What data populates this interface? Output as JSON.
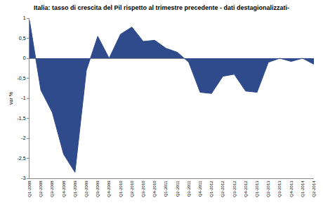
{
  "chart_data": {
    "type": "area",
    "title": "Italia: tasso di crescita del Pil rispetto al trimestre precedente - dati destagionalizzati-",
    "y_label": "var %",
    "categories": [
      "Q1-2008",
      "Q2-2008",
      "Q3-2008",
      "Q4-2008",
      "Q1-2009",
      "Q2-2009",
      "Q3-2009",
      "Q4-2009",
      "Q1-2010",
      "Q2-2010",
      "Q3-2010",
      "Q4-2010",
      "Q1-2011",
      "Q2-2011",
      "Q3-2011",
      "Q4-2011",
      "Q1-2012",
      "Q2-2012",
      "Q3-2012",
      "Q4-2012",
      "Q1-2013",
      "Q2-2013",
      "Q3-2013",
      "Q4-2013",
      "Q1-2014",
      "Q2-2014"
    ],
    "values": [
      0.95,
      -0.8,
      -1.35,
      -2.4,
      -2.85,
      -0.3,
      0.55,
      0.0,
      0.6,
      0.78,
      0.42,
      0.45,
      0.25,
      0.15,
      -0.1,
      -0.85,
      -0.88,
      -0.45,
      -0.4,
      -0.82,
      -0.85,
      -0.1,
      0.0,
      -0.08,
      0.0,
      -0.15
    ],
    "color": "#2f4b8c",
    "ylim": [
      -3,
      1
    ],
    "yticks": [
      -3,
      {
        "value": -2.5,
        "label": "-2,5"
      },
      -2,
      {
        "value": -1.5,
        "label": "-1,5"
      },
      -1,
      {
        "value": -0.5,
        "label": "-0,5"
      },
      0,
      {
        "value": 0.5,
        "label": "0,5"
      },
      1
    ],
    "grid": false
  }
}
